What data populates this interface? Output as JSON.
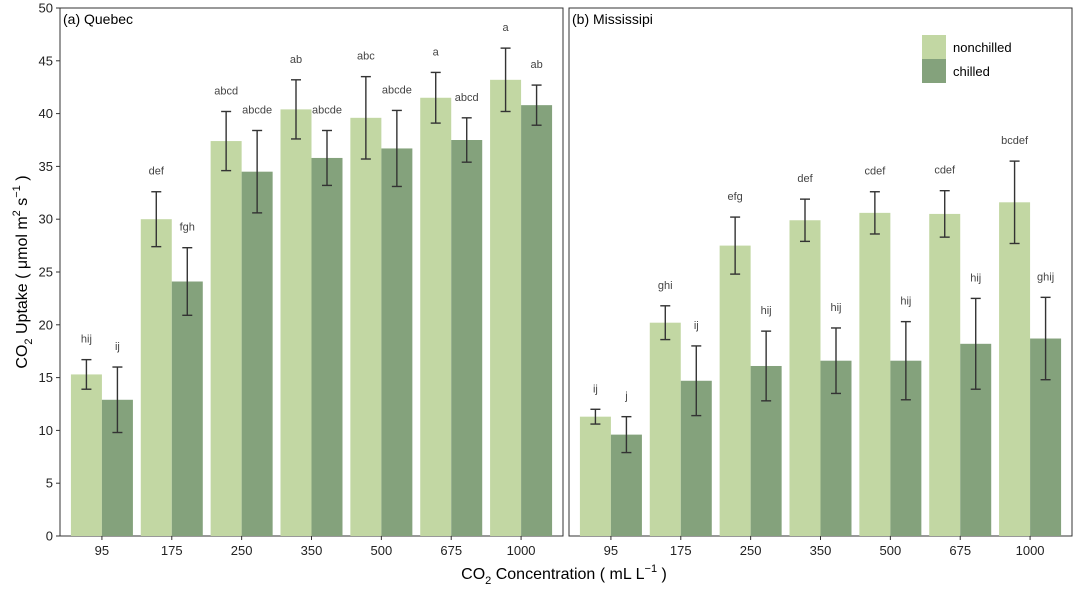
{
  "chart_data": [
    {
      "type": "bar",
      "title": "(a) Quebec",
      "categories": [
        "95",
        "175",
        "250",
        "350",
        "500",
        "675",
        "1000"
      ],
      "series": [
        {
          "name": "nonchilled",
          "values": [
            15.3,
            30.0,
            37.4,
            40.4,
            39.6,
            41.5,
            43.2
          ],
          "error": [
            1.4,
            2.6,
            2.8,
            2.8,
            3.9,
            2.4,
            3.0
          ],
          "labels": [
            "hij",
            "def",
            "abcd",
            "ab",
            "abc",
            "a",
            "a"
          ]
        },
        {
          "name": "chilled",
          "values": [
            12.9,
            24.1,
            34.5,
            35.8,
            36.7,
            37.5,
            40.8
          ],
          "error": [
            3.1,
            3.2,
            3.9,
            2.6,
            3.6,
            2.1,
            1.9
          ],
          "labels": [
            "ij",
            "fgh",
            "abcde",
            "abcde",
            "abcde",
            "abcd",
            "ab"
          ]
        }
      ],
      "ylim": [
        0,
        50
      ],
      "yticks": [
        0,
        5,
        10,
        15,
        20,
        25,
        30,
        35,
        40,
        45,
        50
      ]
    },
    {
      "type": "bar",
      "title": "(b) Mississipi",
      "categories": [
        "95",
        "175",
        "250",
        "350",
        "500",
        "675",
        "1000"
      ],
      "series": [
        {
          "name": "nonchilled",
          "values": [
            11.3,
            20.2,
            27.5,
            29.9,
            30.6,
            30.5,
            31.6
          ],
          "error": [
            0.7,
            1.6,
            2.7,
            2.0,
            2.0,
            2.2,
            3.9
          ],
          "labels": [
            "ij",
            "ghi",
            "efg",
            "def",
            "cdef",
            "cdef",
            "bcdef"
          ]
        },
        {
          "name": "chilled",
          "values": [
            9.6,
            14.7,
            16.1,
            16.6,
            16.6,
            18.2,
            18.7
          ],
          "error": [
            1.7,
            3.3,
            3.3,
            3.1,
            3.7,
            4.3,
            3.9
          ],
          "labels": [
            "j",
            "ij",
            "hij",
            "hij",
            "hij",
            "hij",
            "ghij"
          ]
        }
      ],
      "ylim": [
        0,
        50
      ]
    }
  ],
  "axes": {
    "ylabel": {
      "main": "CO",
      "sub": "2",
      "rest": " Uptake ( μmol m",
      "sup1": "2",
      "mid": " s",
      "sup2": "−1",
      "end": " )"
    },
    "xlabel": {
      "main": "CO",
      "sub": "2",
      "rest": " Concentration ( mL L",
      "sup": "−1",
      "end": " )"
    }
  },
  "legend": {
    "position": "top-right",
    "items": [
      {
        "label": "nonchilled",
        "color": "#c2d7a3"
      },
      {
        "label": "chilled",
        "color": "#84a27c"
      }
    ]
  },
  "colors": {
    "nonchilled": "#c2d7a3",
    "chilled": "#84a27c",
    "errorbar": "#333333",
    "panel_border": "#333333",
    "sig_label": "#444444"
  }
}
